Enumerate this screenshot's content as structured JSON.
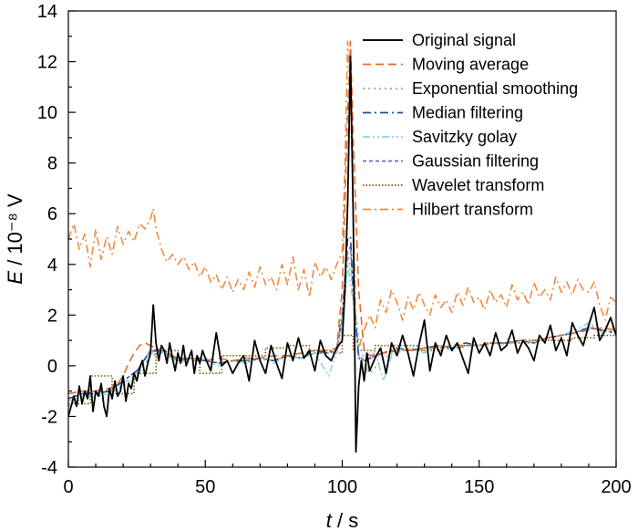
{
  "chart_data": {
    "type": "line",
    "xlabel": "t / s",
    "ylabel": "E / 10⁻⁸ V",
    "xlim": [
      0,
      200
    ],
    "ylim": [
      -4,
      14
    ],
    "x_ticks": [
      0,
      50,
      100,
      150,
      200
    ],
    "y_ticks": [
      -4,
      -2,
      0,
      2,
      4,
      6,
      8,
      10,
      12,
      14
    ],
    "grid": false,
    "legend_position": "top-right",
    "colors": {
      "original": "#000000",
      "moving_average": "#e46c2c",
      "exponential": "#7fbf7f",
      "median": "#1f4fa0",
      "savitzky": "#8fd3e8",
      "gaussian": "#8a5fb0",
      "wavelet": "#7a5a00",
      "hilbert": "#f08a40"
    },
    "series": [
      {
        "key": "original",
        "name": "Original signal",
        "x": [
          0,
          2,
          3,
          4,
          5,
          6,
          7,
          8,
          9,
          10,
          11,
          12,
          13,
          14,
          15,
          16,
          17,
          18,
          19,
          20,
          21,
          22,
          23,
          24,
          25,
          26,
          27,
          28,
          29,
          30,
          31,
          32,
          33,
          34,
          35,
          36,
          37,
          38,
          39,
          40,
          41,
          42,
          43,
          44,
          45,
          46,
          47,
          48,
          49,
          50,
          52,
          54,
          56,
          58,
          60,
          62,
          64,
          66,
          68,
          70,
          72,
          74,
          76,
          78,
          80,
          82,
          84,
          86,
          88,
          90,
          92,
          94,
          96,
          98,
          100,
          101,
          102,
          103,
          104,
          105,
          106,
          107,
          108,
          109,
          110,
          112,
          114,
          116,
          118,
          120,
          122,
          124,
          126,
          128,
          130,
          132,
          134,
          136,
          138,
          140,
          142,
          144,
          146,
          148,
          150,
          152,
          154,
          156,
          158,
          160,
          162,
          164,
          166,
          168,
          170,
          172,
          174,
          176,
          178,
          180,
          182,
          184,
          186,
          188,
          190,
          192,
          194,
          196,
          198,
          200
        ],
        "values": [
          -2.0,
          -1.2,
          -1.6,
          -0.8,
          -1.5,
          -1.0,
          -1.3,
          -0.4,
          -1.8,
          -1.0,
          -1.2,
          -0.7,
          -1.6,
          -2.0,
          -0.9,
          -1.3,
          -0.6,
          -1.2,
          -1.0,
          -0.4,
          -1.4,
          -0.7,
          -0.9,
          -0.3,
          -0.6,
          -0.1,
          0.2,
          -0.4,
          0.1,
          0.5,
          2.4,
          0.9,
          0.2,
          0.8,
          0.6,
          0.1,
          0.9,
          0.3,
          -0.2,
          0.5,
          0.1,
          0.8,
          0.0,
          0.3,
          0.6,
          -0.3,
          0.4,
          0.1,
          0.6,
          0.3,
          -0.2,
          1.3,
          0.0,
          0.2,
          -0.3,
          0.1,
          0.4,
          -0.6,
          1.0,
          0.2,
          -0.3,
          0.8,
          0.1,
          -0.5,
          0.9,
          0.2,
          1.1,
          0.3,
          0.6,
          -0.2,
          1.0,
          0.4,
          0.2,
          0.7,
          1.0,
          3.0,
          6.5,
          12.2,
          6.0,
          -3.4,
          -0.8,
          0.2,
          -0.6,
          0.5,
          -0.2,
          0.3,
          0.7,
          -0.3,
          0.9,
          0.4,
          1.2,
          0.5,
          -0.4,
          0.8,
          1.8,
          -0.2,
          0.9,
          0.4,
          1.2,
          0.6,
          0.9,
          0.3,
          -0.3,
          1.1,
          0.5,
          0.9,
          0.4,
          1.3,
          0.6,
          0.8,
          1.4,
          0.5,
          1.0,
          0.7,
          0.2,
          1.2,
          0.9,
          1.6,
          0.6,
          1.1,
          0.4,
          1.7,
          1.2,
          0.8,
          1.6,
          2.3,
          1.0,
          1.4,
          1.9,
          1.2
        ],
        "style": "solid"
      },
      {
        "key": "moving_average",
        "name": "Moving average",
        "x": [
          0,
          5,
          10,
          15,
          18,
          20,
          22,
          24,
          26,
          28,
          30,
          32,
          34,
          36,
          38,
          40,
          45,
          50,
          55,
          60,
          65,
          70,
          75,
          80,
          85,
          90,
          95,
          98,
          100,
          102,
          103,
          104,
          106,
          108,
          110,
          115,
          120,
          125,
          130,
          135,
          140,
          145,
          150,
          155,
          160,
          165,
          170,
          175,
          180,
          185,
          190,
          195,
          200
        ],
        "values": [
          -1.1,
          -1.0,
          -1.0,
          -0.9,
          -0.7,
          -0.4,
          0.1,
          0.5,
          0.8,
          0.9,
          0.8,
          0.7,
          0.6,
          0.5,
          0.4,
          0.3,
          0.2,
          0.2,
          0.3,
          0.2,
          0.3,
          0.3,
          0.4,
          0.4,
          0.5,
          0.6,
          0.6,
          0.7,
          3.0,
          10.0,
          12.8,
          9.0,
          3.0,
          0.6,
          0.4,
          0.5,
          0.6,
          0.6,
          0.7,
          0.7,
          0.8,
          0.8,
          0.8,
          0.9,
          0.9,
          1.0,
          1.0,
          1.1,
          1.2,
          1.3,
          1.4,
          1.5,
          1.4
        ],
        "style": "dashed"
      },
      {
        "key": "exponential",
        "name": "Exponential smoothing",
        "x": [
          0,
          5,
          10,
          15,
          20,
          25,
          30,
          35,
          40,
          45,
          50,
          55,
          60,
          65,
          70,
          75,
          80,
          85,
          90,
          95,
          98,
          100,
          102,
          104,
          106,
          108,
          110,
          115,
          120,
          125,
          130,
          135,
          140,
          145,
          150,
          155,
          160,
          165,
          170,
          175,
          180,
          185,
          190,
          195,
          200
        ],
        "values": [
          -1.6,
          -1.3,
          -1.2,
          -1.1,
          -0.8,
          -0.4,
          0.4,
          0.5,
          0.2,
          0.3,
          0.3,
          0.1,
          0.2,
          0.1,
          0.3,
          0.2,
          0.4,
          0.3,
          0.5,
          0.5,
          0.6,
          2.0,
          4.5,
          3.0,
          1.0,
          0.2,
          -0.3,
          0.3,
          0.6,
          0.7,
          0.6,
          0.8,
          0.7,
          0.8,
          0.8,
          0.9,
          0.9,
          1.0,
          0.9,
          1.1,
          1.2,
          1.3,
          1.6,
          1.4,
          1.5
        ],
        "style": "dotted"
      },
      {
        "key": "median",
        "name": "Median filtering",
        "x": [
          0,
          5,
          10,
          15,
          20,
          25,
          30,
          35,
          40,
          45,
          50,
          55,
          60,
          65,
          70,
          75,
          80,
          85,
          90,
          95,
          98,
          100,
          102,
          103,
          104,
          106,
          108,
          110,
          115,
          120,
          125,
          130,
          135,
          140,
          145,
          150,
          155,
          160,
          165,
          170,
          175,
          180,
          185,
          190,
          195,
          200
        ],
        "values": [
          -1.3,
          -1.1,
          -1.1,
          -1.0,
          -0.6,
          -0.2,
          0.6,
          0.6,
          0.2,
          0.3,
          0.2,
          0.1,
          0.2,
          0.2,
          0.3,
          0.2,
          0.4,
          0.3,
          0.6,
          0.5,
          0.7,
          2.0,
          5.0,
          5.1,
          3.0,
          0.3,
          0.2,
          0.3,
          0.5,
          0.7,
          0.6,
          0.7,
          0.8,
          0.7,
          0.9,
          0.8,
          0.9,
          0.9,
          1.0,
          0.9,
          1.1,
          1.2,
          1.3,
          1.5,
          1.4,
          1.3
        ],
        "style": "dashdot"
      },
      {
        "key": "savitzky",
        "name": "Savitzky golay",
        "x": [
          0,
          5,
          10,
          15,
          20,
          25,
          30,
          35,
          40,
          45,
          50,
          55,
          60,
          65,
          70,
          75,
          80,
          85,
          90,
          95,
          98,
          100,
          102,
          104,
          106,
          108,
          110,
          112,
          115,
          118,
          120,
          125,
          130,
          135,
          140,
          145,
          150,
          155,
          160,
          165,
          170,
          175,
          180,
          185,
          190,
          195,
          200
        ],
        "values": [
          -1.4,
          -1.2,
          -1.1,
          -1.0,
          -0.7,
          -0.3,
          0.5,
          0.5,
          0.1,
          0.3,
          0.2,
          0.0,
          0.2,
          0.1,
          0.3,
          0.1,
          0.4,
          0.3,
          0.5,
          -0.4,
          0.5,
          1.5,
          4.0,
          2.5,
          0.5,
          -0.5,
          0.2,
          0.6,
          -0.6,
          0.4,
          0.5,
          0.7,
          0.5,
          0.8,
          0.6,
          0.9,
          0.8,
          0.9,
          0.8,
          1.0,
          0.9,
          1.1,
          1.2,
          1.4,
          1.7,
          1.3,
          1.6
        ],
        "style": "dashdotdot"
      },
      {
        "key": "gaussian",
        "name": "Gaussian filtering",
        "x": [
          0,
          5,
          10,
          15,
          20,
          25,
          30,
          35,
          40,
          45,
          50,
          55,
          60,
          65,
          70,
          75,
          80,
          85,
          90,
          95,
          98,
          100,
          102,
          103,
          104,
          106,
          108,
          110,
          115,
          120,
          125,
          130,
          135,
          140,
          145,
          150,
          155,
          160,
          165,
          170,
          175,
          180,
          185,
          190,
          195,
          200
        ],
        "values": [
          -1.3,
          -1.1,
          -1.0,
          -1.0,
          -0.6,
          -0.2,
          0.6,
          0.5,
          0.2,
          0.3,
          0.2,
          0.1,
          0.2,
          0.2,
          0.3,
          0.2,
          0.4,
          0.3,
          0.5,
          0.5,
          0.6,
          1.8,
          4.5,
          4.7,
          2.8,
          0.4,
          0.2,
          0.3,
          0.5,
          0.6,
          0.6,
          0.7,
          0.8,
          0.7,
          0.8,
          0.8,
          0.9,
          0.9,
          1.0,
          0.9,
          1.1,
          1.2,
          1.3,
          1.5,
          1.4,
          1.3
        ],
        "style": "dashed-fine"
      },
      {
        "key": "wavelet",
        "name": "Wavelet transform",
        "x": [
          0,
          8,
          8,
          16,
          16,
          24,
          24,
          32,
          32,
          40,
          40,
          48,
          48,
          56,
          56,
          64,
          64,
          72,
          72,
          80,
          80,
          88,
          88,
          96,
          96,
          100,
          100,
          104,
          104,
          112,
          112,
          120,
          120,
          128,
          128,
          136,
          136,
          144,
          144,
          152,
          152,
          160,
          160,
          168,
          168,
          176,
          176,
          184,
          184,
          192,
          192,
          200
        ],
        "values": [
          -1.5,
          -1.5,
          -0.4,
          -0.4,
          -1.1,
          -1.1,
          -0.3,
          -0.3,
          0.6,
          0.6,
          0.3,
          0.3,
          -0.3,
          -0.3,
          0.4,
          0.4,
          0.4,
          0.4,
          0.7,
          0.7,
          0.8,
          0.8,
          0.6,
          0.6,
          0.5,
          0.5,
          1.2,
          1.2,
          0.6,
          0.6,
          0.8,
          0.8,
          0.8,
          0.8,
          0.6,
          0.6,
          0.7,
          0.7,
          0.8,
          0.8,
          0.9,
          0.9,
          0.9,
          0.9,
          1.0,
          1.0,
          1.0,
          1.0,
          1.1,
          1.1,
          1.2,
          1.2
        ],
        "style": "dotted-fine"
      },
      {
        "key": "hilbert",
        "name": "Hilbert transform",
        "x": [
          0,
          2,
          4,
          6,
          8,
          10,
          12,
          14,
          16,
          18,
          20,
          22,
          24,
          26,
          28,
          30,
          31,
          32,
          34,
          36,
          38,
          40,
          42,
          44,
          46,
          48,
          50,
          52,
          54,
          56,
          58,
          60,
          62,
          64,
          66,
          68,
          70,
          72,
          74,
          76,
          78,
          80,
          82,
          84,
          86,
          88,
          90,
          92,
          94,
          96,
          98,
          100,
          101,
          102,
          103,
          104,
          105,
          106,
          108,
          110,
          112,
          114,
          116,
          118,
          120,
          122,
          124,
          126,
          128,
          130,
          132,
          134,
          136,
          138,
          140,
          142,
          144,
          146,
          148,
          150,
          152,
          154,
          156,
          158,
          160,
          162,
          164,
          166,
          168,
          170,
          172,
          174,
          176,
          178,
          180,
          182,
          184,
          186,
          188,
          190,
          192,
          194,
          196,
          198,
          200
        ],
        "values": [
          5.0,
          5.6,
          4.6,
          5.2,
          3.9,
          5.4,
          4.2,
          5.1,
          4.4,
          5.5,
          4.8,
          5.3,
          4.9,
          5.6,
          5.4,
          5.8,
          6.2,
          5.4,
          4.6,
          4.1,
          4.4,
          4.0,
          4.3,
          3.8,
          4.1,
          3.5,
          3.9,
          3.3,
          3.6,
          3.0,
          3.5,
          2.9,
          3.4,
          3.0,
          3.7,
          3.1,
          3.9,
          3.2,
          3.5,
          3.0,
          4.0,
          3.2,
          4.3,
          3.0,
          3.8,
          2.7,
          4.1,
          3.5,
          3.9,
          3.4,
          4.0,
          4.5,
          8.0,
          12.8,
          11.0,
          6.0,
          1.6,
          0.7,
          1.4,
          2.0,
          1.5,
          2.6,
          2.1,
          3.0,
          2.5,
          1.8,
          2.7,
          2.2,
          2.9,
          2.4,
          2.0,
          2.8,
          2.3,
          2.6,
          2.1,
          2.9,
          2.4,
          3.1,
          2.5,
          2.7,
          2.2,
          3.0,
          2.5,
          2.8,
          2.3,
          3.2,
          2.6,
          2.9,
          2.4,
          3.3,
          2.7,
          3.0,
          2.6,
          3.5,
          2.9,
          3.3,
          2.8,
          3.4,
          3.0,
          2.9,
          3.3,
          2.4,
          1.8,
          2.7,
          2.5
        ],
        "style": "dashdot"
      }
    ]
  }
}
